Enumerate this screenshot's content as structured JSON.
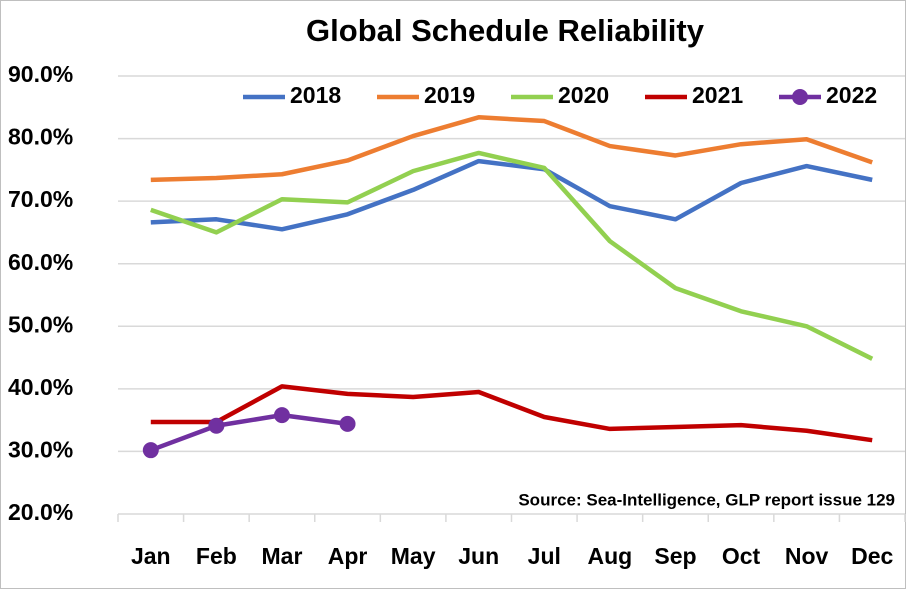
{
  "chart_data": {
    "type": "line",
    "title": "Global Schedule Reliability",
    "categories": [
      "Jan",
      "Feb",
      "Mar",
      "Apr",
      "May",
      "Jun",
      "Jul",
      "Aug",
      "Sep",
      "Oct",
      "Nov",
      "Dec"
    ],
    "series": [
      {
        "name": "2018",
        "color": "#4472c4",
        "values": [
          66.6,
          67.1,
          65.5,
          67.9,
          71.8,
          76.4,
          75.1,
          69.2,
          67.1,
          72.9,
          75.6,
          73.4
        ]
      },
      {
        "name": "2019",
        "color": "#ed7d31",
        "values": [
          73.4,
          73.7,
          74.3,
          76.5,
          80.4,
          83.4,
          82.8,
          78.8,
          77.3,
          79.1,
          79.9,
          76.2
        ]
      },
      {
        "name": "2020",
        "color": "#92d050",
        "values": [
          68.6,
          65.0,
          70.3,
          69.8,
          74.8,
          77.7,
          75.3,
          63.6,
          56.1,
          52.4,
          50.0,
          44.8
        ]
      },
      {
        "name": "2021",
        "color": "#c00000",
        "values": [
          34.7,
          34.7,
          40.4,
          39.2,
          38.7,
          39.5,
          35.5,
          33.6,
          33.9,
          34.2,
          33.3,
          31.8
        ]
      },
      {
        "name": "2022",
        "color": "#7030a0",
        "markers": true,
        "values": [
          30.2,
          34.1,
          35.8,
          34.4,
          null,
          null,
          null,
          null,
          null,
          null,
          null,
          null
        ]
      }
    ],
    "ylim": [
      20,
      90
    ],
    "yticks": [
      {
        "value": 20,
        "label": "20.0%"
      },
      {
        "value": 30,
        "label": "30.0%"
      },
      {
        "value": 40,
        "label": "40.0%"
      },
      {
        "value": 50,
        "label": "50.0%"
      },
      {
        "value": 60,
        "label": "60.0%"
      },
      {
        "value": 70,
        "label": "70.0%"
      },
      {
        "value": 80,
        "label": "80.0%"
      },
      {
        "value": 90,
        "label": "90.0%"
      }
    ],
    "grid": true,
    "legend": "top",
    "annotation": "Source: Sea-Intelligence, GLP report issue 129"
  }
}
